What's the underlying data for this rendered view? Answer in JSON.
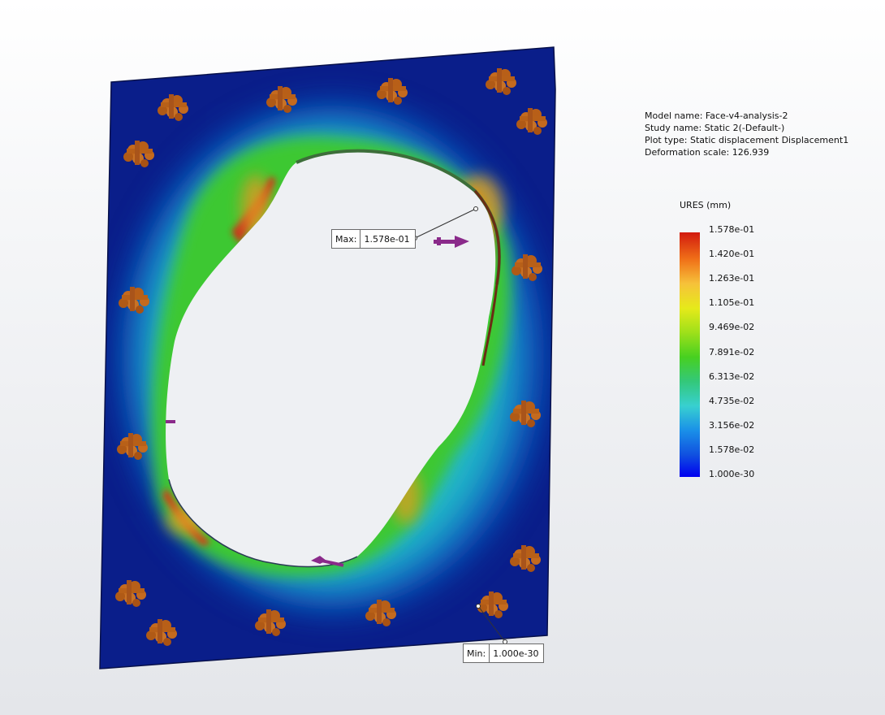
{
  "info": {
    "model_name": "Model name: Face-v4-analysis-2",
    "study_name": "Study name: Static 2(-Default-)",
    "plot_type": "Plot type: Static displacement Displacement1",
    "deformation_scale": "Deformation scale: 126.939"
  },
  "legend": {
    "title": "URES (mm)",
    "labels": [
      "1.578e-01",
      "1.420e-01",
      "1.263e-01",
      "1.105e-01",
      "9.469e-02",
      "7.891e-02",
      "6.313e-02",
      "4.735e-02",
      "3.156e-02",
      "1.578e-02",
      "1.000e-30"
    ],
    "colors": [
      "#d21a0e",
      "#0000f0"
    ]
  },
  "max_probe": {
    "label": "Max:",
    "value": "1.578e-01"
  },
  "min_probe": {
    "label": "Min:",
    "value": "1.000e-30"
  },
  "icons": {
    "fixture": "fixed-geometry-icon",
    "load": "force-arrow-icon"
  }
}
